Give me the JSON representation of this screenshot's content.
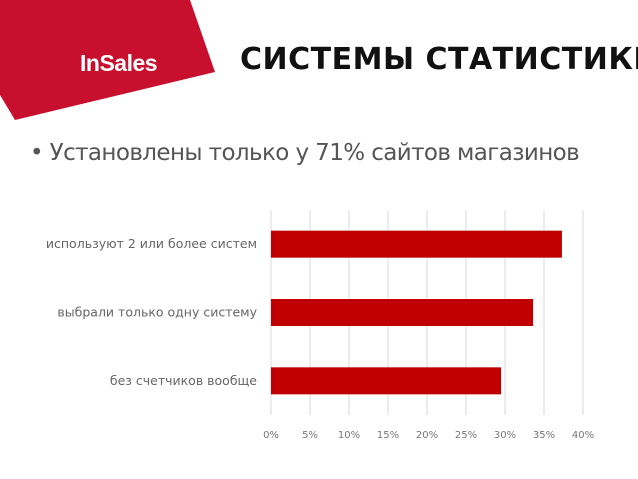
{
  "header": {
    "logo_text": "InSales",
    "title": "СИСТЕМЫ СТАТИСТИКИ",
    "accent_color": "#c8102e"
  },
  "bullet_text": "• Установлены только у 71% сайтов магазинов",
  "chart_data": {
    "type": "bar",
    "orientation": "horizontal",
    "categories": [
      "используют 2 или более систем",
      "выбрали только одну систему",
      "без счетчиков вообще"
    ],
    "values": [
      37.3,
      33.6,
      29.5
    ],
    "xlim": [
      0,
      40
    ],
    "ticks": [
      "0%",
      "5%",
      "10%",
      "15%",
      "20%",
      "25%",
      "30%",
      "35%",
      "40%"
    ],
    "bar_color": "#c00000",
    "grid": true,
    "legend": "none"
  }
}
